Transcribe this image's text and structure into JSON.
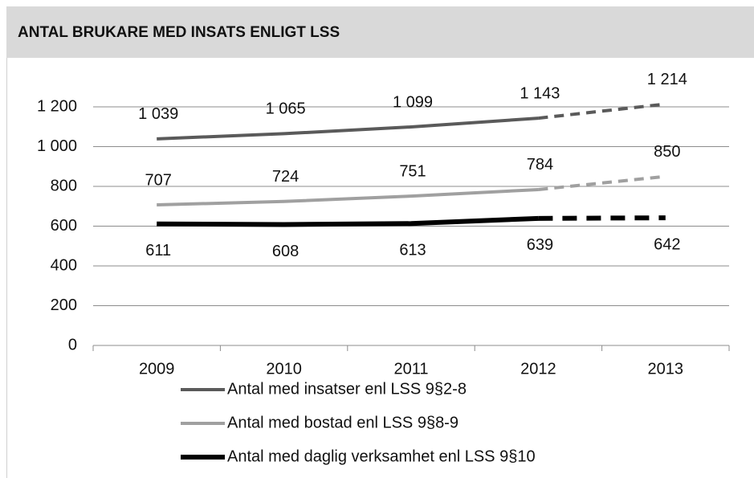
{
  "chart_data": {
    "type": "line",
    "title": "ANTAL BRUKARE MED INSATS ENLIGT LSS",
    "categories": [
      "2009",
      "2010",
      "2011",
      "2012",
      "2013"
    ],
    "dashed_from": "2012",
    "series": [
      {
        "name": "Antal med insatser enl LSS 9§2-8",
        "color": "#5a5a5a",
        "width": 4,
        "label_position": "above",
        "values": [
          1039,
          1065,
          1099,
          1143,
          1214
        ],
        "value_labels": [
          "1 039",
          "1 065",
          "1 099",
          "1 143",
          "1 214"
        ]
      },
      {
        "name": "Antal med bostad enl LSS 9§8-9",
        "color": "#a0a0a0",
        "width": 4,
        "label_position": "above",
        "values": [
          707,
          724,
          751,
          784,
          850
        ]
      },
      {
        "name": "Antal med daglig verksamhet enl LSS 9§10",
        "color": "#000000",
        "width": 6,
        "label_position": "below",
        "values": [
          611,
          608,
          613,
          639,
          642
        ]
      }
    ],
    "ylim": [
      0,
      1200
    ],
    "yticks": [
      0,
      200,
      400,
      600,
      800,
      {
        "value": 1000,
        "label": "1 000"
      },
      {
        "value": 1200,
        "label": "1 200"
      }
    ],
    "grid": true
  }
}
